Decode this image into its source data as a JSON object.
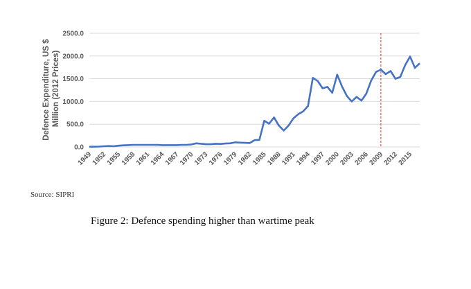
{
  "chart_data": {
    "type": "line",
    "ylabel": "Defence Expenditure, US $ Million (2012 Prices)",
    "ylabel_lines": [
      "Defence Expenditure, US $",
      "Million (2012 Prices)"
    ],
    "ylim": [
      0,
      2500
    ],
    "yticks": [
      0,
      500,
      1000,
      1500,
      2000,
      2500
    ],
    "ytick_labels": [
      "0.0",
      "500.0",
      "1000.0",
      "1500.0",
      "2000.0",
      "2500.0"
    ],
    "xlim": [
      1949,
      2017
    ],
    "xticks": [
      1949,
      1952,
      1955,
      1958,
      1961,
      1964,
      1967,
      1970,
      1973,
      1976,
      1979,
      1982,
      1985,
      1988,
      1991,
      1994,
      1997,
      2000,
      2003,
      2006,
      2009,
      2012,
      2015
    ],
    "xtick_labels": [
      "1949",
      "1952",
      "1955",
      "1958",
      "1961",
      "1964",
      "1967",
      "1970",
      "1973",
      "1976",
      "1979",
      "1982",
      "1985",
      "1988",
      "1991",
      "1994",
      "1997",
      "2000",
      "2003",
      "2006",
      "2009",
      "2012",
      "2015"
    ],
    "x": [
      1949,
      1950,
      1951,
      1952,
      1953,
      1954,
      1955,
      1956,
      1957,
      1958,
      1959,
      1960,
      1961,
      1962,
      1963,
      1964,
      1965,
      1966,
      1967,
      1968,
      1969,
      1970,
      1971,
      1972,
      1973,
      1974,
      1975,
      1976,
      1977,
      1978,
      1979,
      1980,
      1981,
      1982,
      1983,
      1984,
      1985,
      1986,
      1987,
      1988,
      1989,
      1990,
      1991,
      1992,
      1993,
      1994,
      1995,
      1996,
      1997,
      1998,
      1999,
      2000,
      2001,
      2002,
      2003,
      2004,
      2005,
      2006,
      2007,
      2008,
      2009,
      2010,
      2011,
      2012,
      2013,
      2014,
      2015,
      2016,
      2017
    ],
    "series": [
      {
        "color": "#4472C4",
        "values": [
          5,
          5,
          8,
          15,
          20,
          15,
          28,
          35,
          40,
          45,
          45,
          45,
          45,
          45,
          45,
          40,
          40,
          40,
          40,
          45,
          45,
          55,
          80,
          70,
          60,
          60,
          70,
          65,
          75,
          80,
          100,
          95,
          90,
          85,
          150,
          155,
          575,
          510,
          650,
          470,
          360,
          470,
          630,
          720,
          780,
          900,
          1520,
          1450,
          1290,
          1320,
          1190,
          1590,
          1330,
          1120,
          1000,
          1100,
          1020,
          1170,
          1460,
          1650,
          1700,
          1600,
          1670,
          1500,
          1540,
          1800,
          1990,
          1740,
          1840
        ]
      }
    ],
    "marker_x": 2009,
    "marker_color": "#E0302B",
    "grid": true
  },
  "source_text": "Source: SIPRI",
  "caption_text": "Figure 2:  Defence spending higher than wartime peak"
}
